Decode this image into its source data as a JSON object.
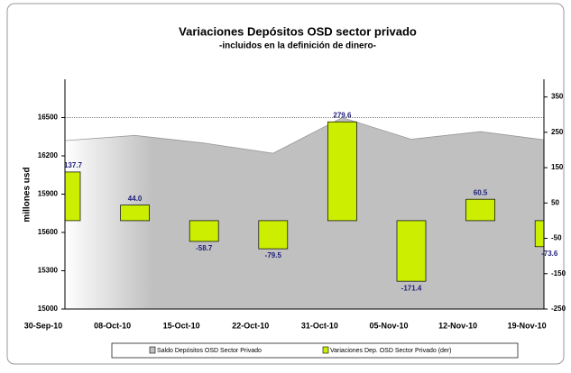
{
  "chart_data": {
    "type": "bar-area",
    "title": "Variaciones Depósitos OSD sector privado",
    "subtitle": "-incluidos en la definición de dinero-",
    "ylabel": "millones usd",
    "categories": [
      "30-Sep-10",
      "08-Oct-10",
      "15-Oct-10",
      "22-Oct-10",
      "31-Oct-10",
      "05-Nov-10",
      "12-Nov-10",
      "19-Nov-10"
    ],
    "series": [
      {
        "name": "Saldo Depósitos OSD Sector Privado",
        "type": "area",
        "color": "#c0c0c0",
        "values": [
          16320,
          16360,
          16300,
          16220,
          16500,
          16330,
          16390,
          16320
        ]
      },
      {
        "name": "Variaciones Dep. OSD Sector Privado (der)",
        "type": "bar",
        "axis": "y2",
        "color": "#ccee00",
        "values": [
          137.7,
          44.0,
          -58.7,
          -79.5,
          279.6,
          -171.4,
          60.5,
          -73.6
        ],
        "value_labels": [
          "137.7",
          "44.0",
          "-58.7",
          "-79.5",
          "279.6",
          "-171.4",
          "60.5",
          "-73.6"
        ]
      }
    ],
    "ylim": [
      15000,
      16800
    ],
    "yticks": [
      15000,
      15300,
      15600,
      15900,
      16200,
      16500
    ],
    "y2lim": [
      -250,
      400
    ],
    "y2ticks": [
      -250,
      -150,
      -50,
      50,
      150,
      250,
      350
    ]
  }
}
